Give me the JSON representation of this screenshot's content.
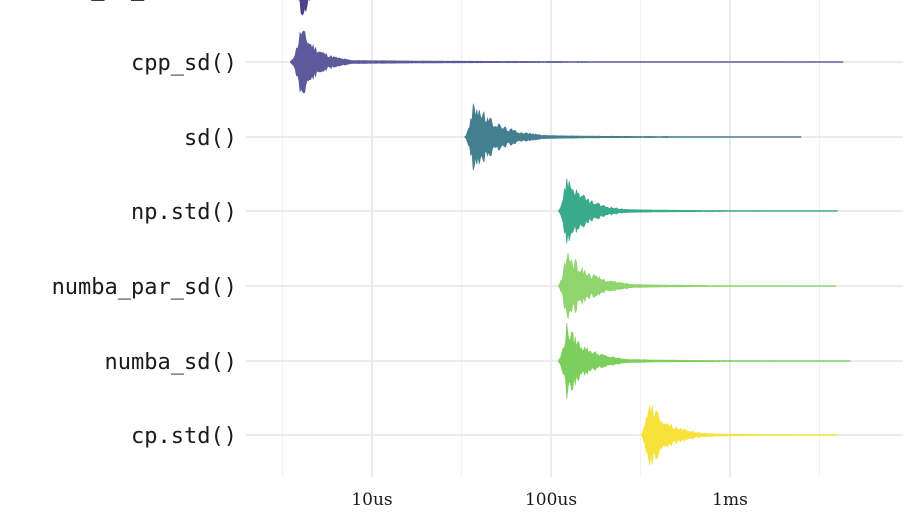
{
  "chart_data": {
    "type": "violin",
    "x_scale": "log",
    "x_unit": "seconds",
    "x_ticks": [
      {
        "value": 1e-05,
        "label": "10us"
      },
      {
        "value": 0.0001,
        "label": "100us"
      },
      {
        "value": 0.001,
        "label": "1ms"
      }
    ],
    "x_minor_ticks": [
      3.16e-06,
      3.16e-05,
      0.000316,
      0.00316
    ],
    "xlim": [
      2e-06,
      0.01
    ],
    "grid": true,
    "legend": "none",
    "series": [
      {
        "label": "cpp_sd()",
        "color": "#5c5a9a",
        "mode": 4e-06,
        "min": 3.5e-06,
        "q95": 7.5e-06,
        "max": 0.0043
      },
      {
        "label": "sd()",
        "color": "#437f8f",
        "mode": 3.7e-05,
        "min": 3.3e-05,
        "q95": 9e-05,
        "max": 0.0025
      },
      {
        "label": "np.std()",
        "color": "#3aaa8c",
        "mode": 0.000122,
        "min": 0.00011,
        "q95": 0.00025,
        "max": 0.004
      },
      {
        "label": "numba_par_sd()",
        "color": "#8fd46c",
        "mode": 0.000122,
        "min": 0.00011,
        "q95": 0.00028,
        "max": 0.0039
      },
      {
        "label": "numba_sd()",
        "color": "#7ccf5c",
        "mode": 0.000122,
        "min": 0.00011,
        "q95": 0.00026,
        "max": 0.0047
      },
      {
        "label": "cp.std()",
        "color": "#f6e23b",
        "mode": 0.00035,
        "min": 0.00032,
        "q95": 0.0007,
        "max": 0.004
      }
    ],
    "partial_top_label": "cpp_sd_sugar()"
  }
}
